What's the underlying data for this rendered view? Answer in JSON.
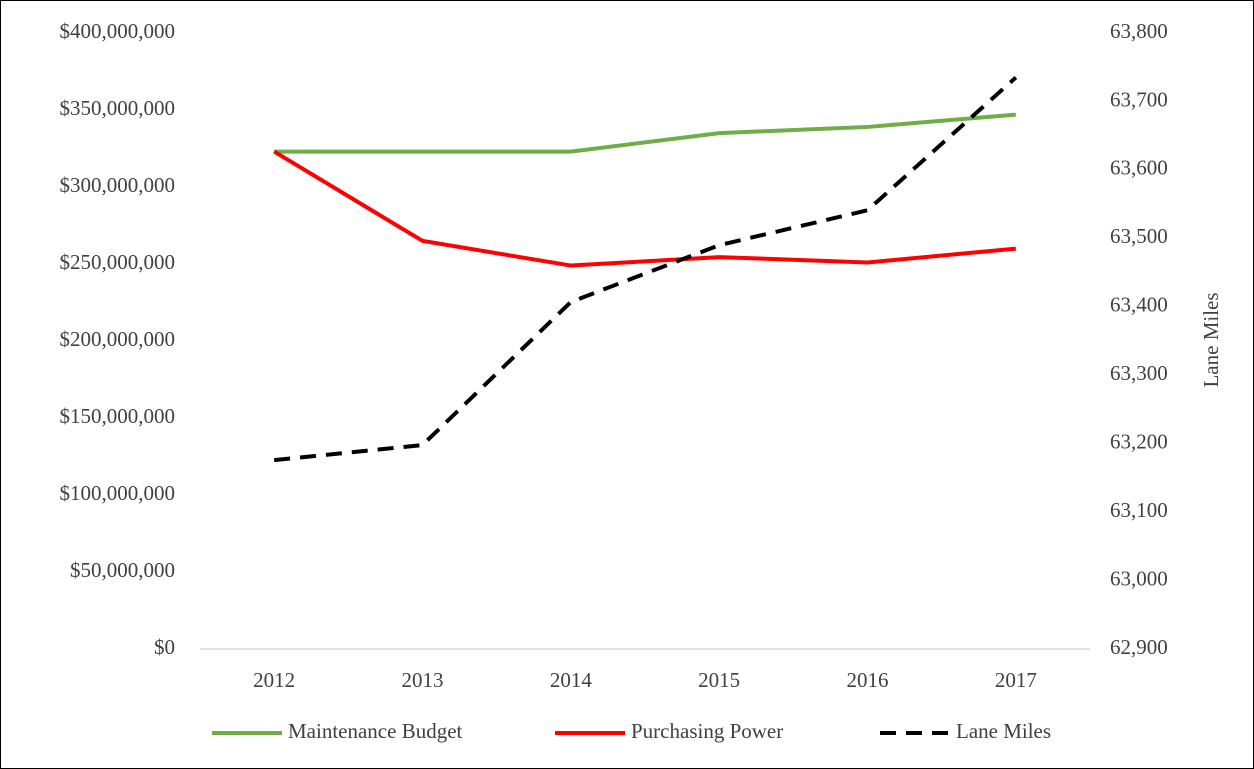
{
  "chart_data": {
    "type": "line",
    "categories": [
      "2012",
      "2013",
      "2014",
      "2015",
      "2016",
      "2017"
    ],
    "series": [
      {
        "name": "Maintenance Budget",
        "color": "#70ad47",
        "linestyle": "solid",
        "axis": "y",
        "values": [
          323000000,
          323000000,
          323000000,
          335000000,
          339000000,
          347000000
        ]
      },
      {
        "name": "Purchasing Power",
        "color": "#ff0000",
        "linestyle": "solid",
        "axis": "y",
        "values": [
          323000000,
          265000000,
          249000000,
          254500000,
          251000000,
          260000000
        ]
      },
      {
        "name": "Lane Miles",
        "color": "#000000",
        "linestyle": "dashed",
        "axis": "y2",
        "values": [
          63176,
          63198,
          63407,
          63490,
          63541,
          63735
        ]
      }
    ],
    "ylim": [
      0,
      400000000
    ],
    "yticks": [
      {
        "value": 0,
        "label": "$0"
      },
      {
        "value": 50000000,
        "label": "$50,000,000"
      },
      {
        "value": 100000000,
        "label": "$100,000,000"
      },
      {
        "value": 150000000,
        "label": "$150,000,000"
      },
      {
        "value": 200000000,
        "label": "$200,000,000"
      },
      {
        "value": 250000000,
        "label": "$250,000,000"
      },
      {
        "value": 300000000,
        "label": "$300,000,000"
      },
      {
        "value": 350000000,
        "label": "$350,000,000"
      },
      {
        "value": 400000000,
        "label": "$400,000,000"
      }
    ],
    "y2lim": [
      62900,
      63800
    ],
    "y2ticks": [
      {
        "value": 62900,
        "label": "62,900"
      },
      {
        "value": 63000,
        "label": "63,000"
      },
      {
        "value": 63100,
        "label": "63,100"
      },
      {
        "value": 63200,
        "label": "63,200"
      },
      {
        "value": 63300,
        "label": "63,300"
      },
      {
        "value": 63400,
        "label": "63,400"
      },
      {
        "value": 63500,
        "label": "63,500"
      },
      {
        "value": 63600,
        "label": "63,600"
      },
      {
        "value": 63700,
        "label": "63,700"
      },
      {
        "value": 63800,
        "label": "63,800"
      }
    ],
    "y2label": "Lane Miles",
    "grid": false,
    "legend": "bottom"
  }
}
